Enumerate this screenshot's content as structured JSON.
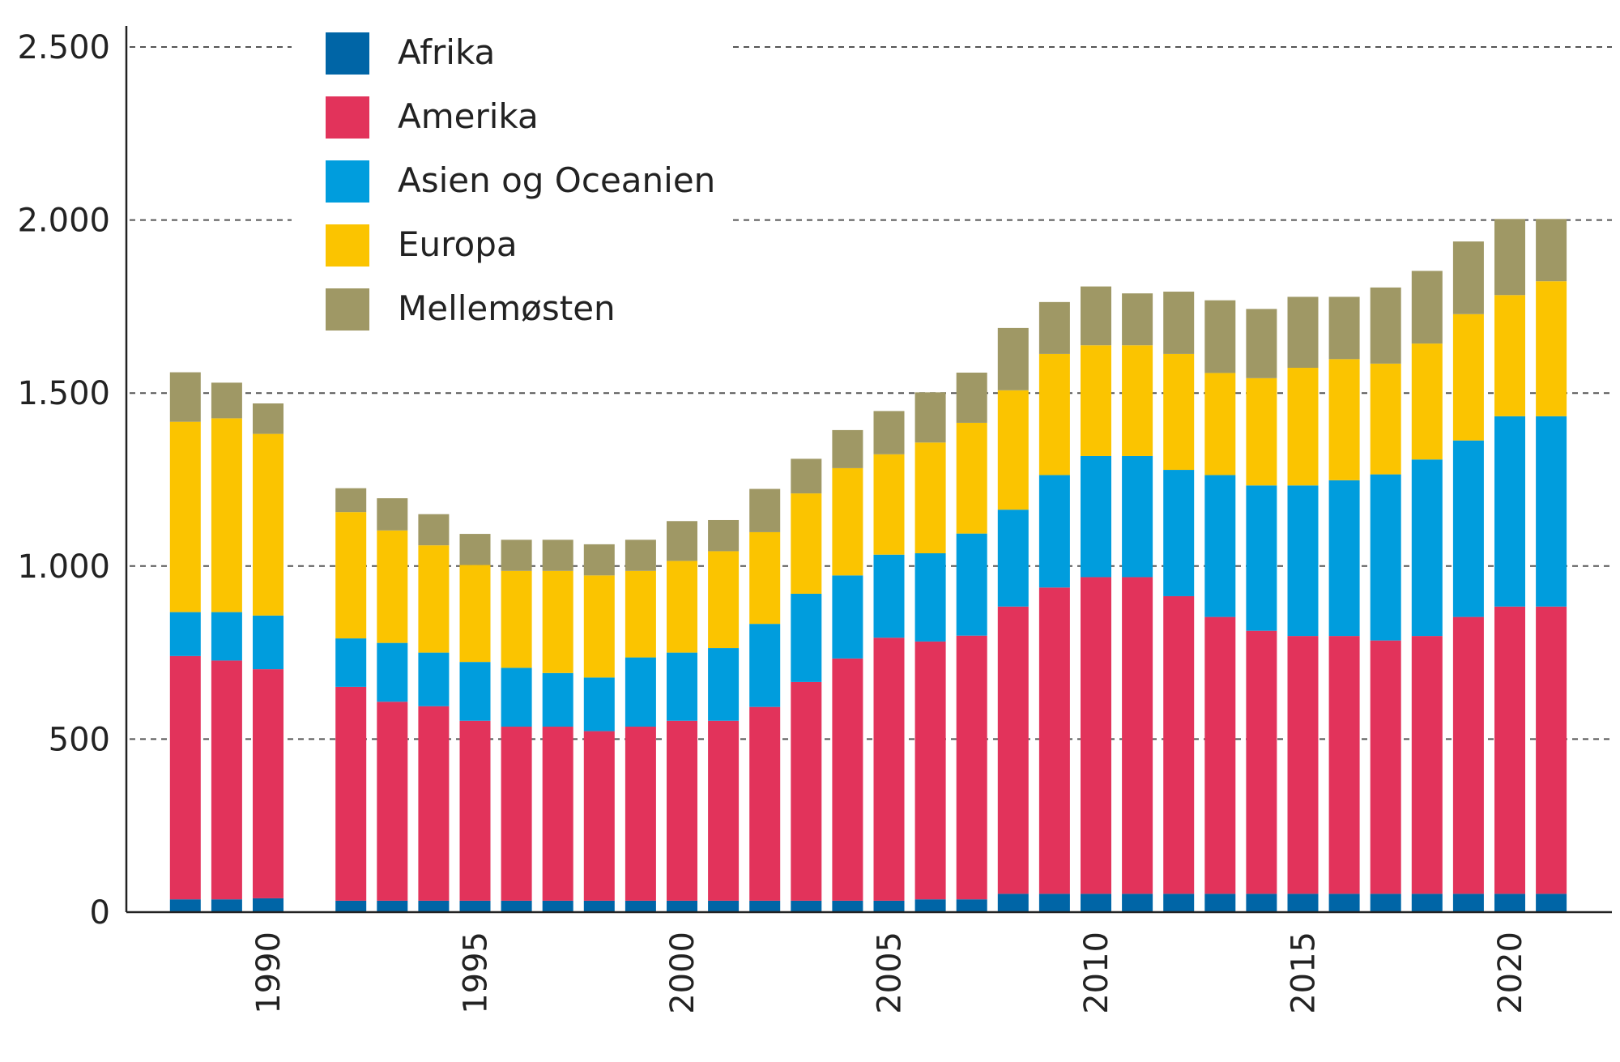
{
  "chart_data": {
    "type": "bar",
    "stacked": true,
    "title": "",
    "xlabel": "",
    "ylabel": "",
    "ylim": [
      0,
      2500
    ],
    "yticks": [
      0,
      500,
      1000,
      1500,
      2000,
      2500
    ],
    "ytick_labels": [
      "0",
      "500",
      "1.000",
      "1.500",
      "2.000",
      "2.500"
    ],
    "xtick_years": [
      1990,
      1995,
      2000,
      2005,
      2010,
      2015,
      2020
    ],
    "xtick_labels": [
      "1990",
      "1995",
      "2000",
      "2005",
      "2010",
      "2015",
      "2020"
    ],
    "grid": true,
    "legend_position": "top-left",
    "categories": [
      1988,
      1989,
      1990,
      1992,
      1993,
      1994,
      1995,
      1996,
      1997,
      1998,
      1999,
      2000,
      2001,
      2002,
      2003,
      2004,
      2005,
      2006,
      2007,
      2008,
      2009,
      2010,
      2011,
      2012,
      2013,
      2014,
      2015,
      2016,
      2017,
      2018,
      2019,
      2020,
      2021
    ],
    "series": [
      {
        "name": "Afrika",
        "color": "#0065a6",
        "values": [
          37,
          37,
          40,
          33,
          33,
          33,
          33,
          33,
          33,
          33,
          33,
          33,
          33,
          33,
          33,
          33,
          33,
          37,
          37,
          53,
          53,
          53,
          53,
          53,
          53,
          53,
          53,
          53,
          53,
          53,
          53,
          53,
          53
        ]
      },
      {
        "name": "Amerika",
        "color": "#e2335b",
        "values": [
          703,
          690,
          662,
          618,
          575,
          562,
          520,
          503,
          503,
          490,
          503,
          520,
          520,
          560,
          632,
          700,
          760,
          745,
          762,
          830,
          885,
          915,
          915,
          860,
          800,
          760,
          745,
          745,
          732,
          745,
          800,
          830,
          830
        ]
      },
      {
        "name": "Asien og Oceanien",
        "color": "#009ddd",
        "values": [
          127,
          140,
          155,
          140,
          170,
          155,
          170,
          170,
          155,
          155,
          200,
          197,
          210,
          240,
          255,
          240,
          240,
          255,
          295,
          280,
          325,
          350,
          350,
          365,
          410,
          420,
          435,
          450,
          480,
          510,
          510,
          550,
          550
        ]
      },
      {
        "name": "Europa",
        "color": "#fbc400",
        "values": [
          550,
          560,
          525,
          365,
          325,
          310,
          280,
          280,
          295,
          295,
          250,
          265,
          280,
          265,
          290,
          310,
          290,
          320,
          320,
          345,
          350,
          320,
          320,
          335,
          295,
          310,
          340,
          350,
          320,
          335,
          365,
          350,
          390
        ]
      },
      {
        "name": "Mellemøsten",
        "color": "#9f9865",
        "values": [
          143,
          103,
          88,
          69,
          93,
          90,
          90,
          90,
          90,
          90,
          90,
          115,
          90,
          125,
          100,
          110,
          125,
          145,
          145,
          180,
          150,
          170,
          150,
          180,
          210,
          200,
          205,
          180,
          220,
          210,
          210,
          220,
          180
        ]
      }
    ]
  }
}
